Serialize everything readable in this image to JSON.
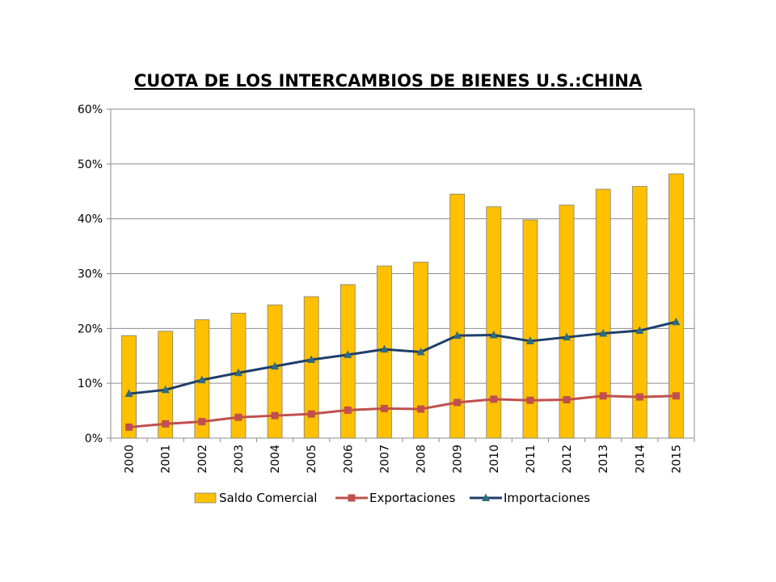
{
  "chart_data": {
    "type": "bar",
    "title": "CUOTA DE LOS INTERCAMBIOS DE BIENES U.S.:CHINA",
    "xlabel": "",
    "ylabel": "",
    "ylim": [
      0,
      0.6
    ],
    "yticks": [
      0,
      0.1,
      0.2,
      0.3,
      0.4,
      0.5,
      0.6
    ],
    "ytick_labels": [
      "0%",
      "10%",
      "20%",
      "30%",
      "40%",
      "50%",
      "60%"
    ],
    "grid": true,
    "legend_position": "bottom",
    "categories": [
      "2000",
      "2001",
      "2002",
      "2003",
      "2004",
      "2005",
      "2006",
      "2007",
      "2008",
      "2009",
      "2010",
      "2011",
      "2012",
      "2013",
      "2014",
      "2015"
    ],
    "series": [
      {
        "name": "Saldo Comercial",
        "type": "bar",
        "color": "#FFC000",
        "values": [
          0.187,
          0.195,
          0.216,
          0.228,
          0.243,
          0.258,
          0.28,
          0.314,
          0.321,
          0.445,
          0.422,
          0.398,
          0.425,
          0.454,
          0.459,
          0.482
        ]
      },
      {
        "name": "Exportaciones",
        "type": "line",
        "marker": "square",
        "color": "#C0504D",
        "values": [
          0.02,
          0.026,
          0.03,
          0.038,
          0.041,
          0.044,
          0.051,
          0.054,
          0.053,
          0.065,
          0.071,
          0.069,
          0.07,
          0.077,
          0.075,
          0.077
        ]
      },
      {
        "name": "Importaciones",
        "type": "line",
        "marker": "triangle",
        "color": "#1F3F6B",
        "marker_color": "#2E6B80",
        "values": [
          0.081,
          0.088,
          0.106,
          0.119,
          0.131,
          0.143,
          0.152,
          0.162,
          0.157,
          0.187,
          0.188,
          0.177,
          0.184,
          0.191,
          0.196,
          0.212
        ]
      }
    ]
  }
}
